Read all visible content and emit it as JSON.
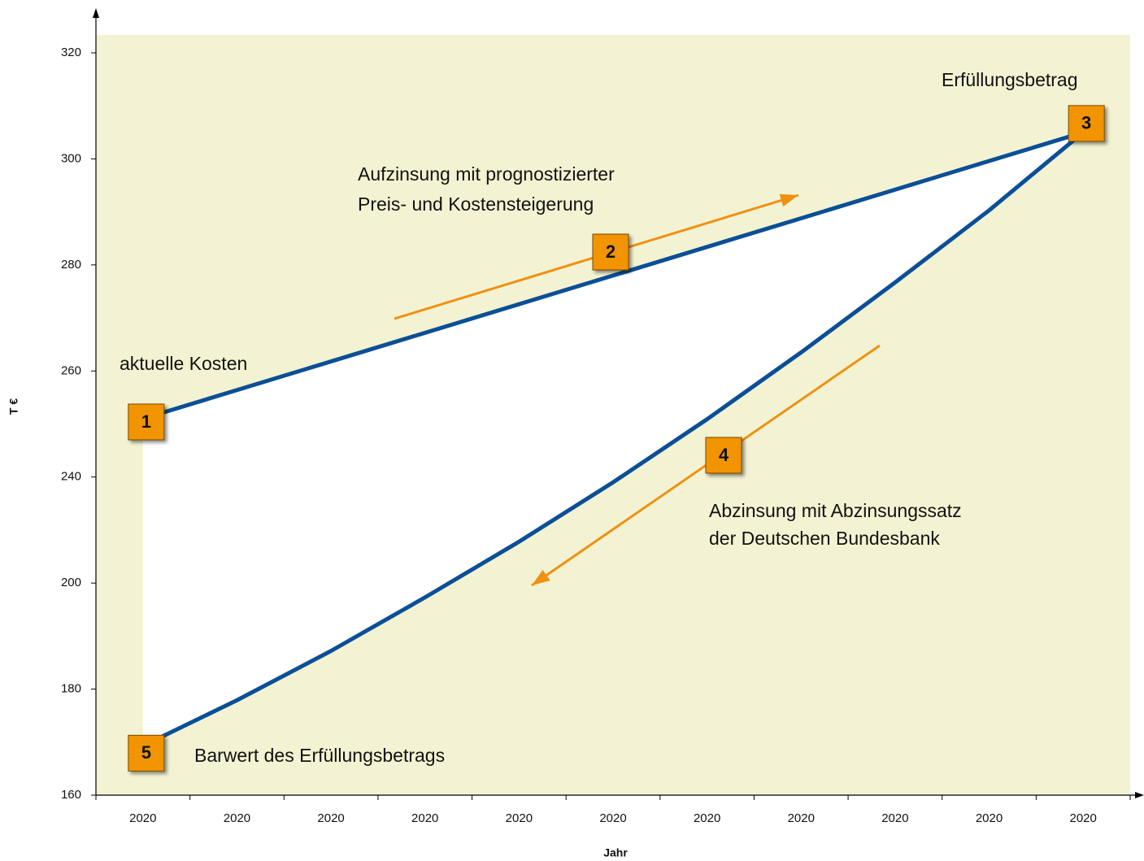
{
  "chart_data": {
    "type": "line",
    "x_label": "Jahr",
    "y_label": "T €",
    "categories": [
      "2020",
      "2020",
      "2020",
      "2020",
      "2020",
      "2020",
      "2020",
      "2020",
      "2020",
      "2020",
      "2020"
    ],
    "series": [
      {
        "color": "#0b4f96",
        "values": [
          251,
          256.4,
          261.8,
          267.2,
          272.6,
          278,
          283.4,
          288.8,
          294.2,
          299.6,
          305
        ]
      },
      {
        "color": "#0b4f96",
        "values": [
          169.3,
          177.9,
          187.2,
          197.3,
          215.6,
          238,
          250.9,
          263.5,
          276.7,
          290.3,
          305
        ]
      }
    ],
    "ylim": [
      160,
      320
    ],
    "yticks": [
      160,
      180,
      200,
      240,
      260,
      280,
      300,
      320
    ],
    "annotations": [
      {
        "badge": "1",
        "lines": [
          "aktuelle Kosten"
        ]
      },
      {
        "badge": "2",
        "lines": [
          "Aufzinsung mit prognostizierter",
          "Preis- und Kostensteigerung"
        ]
      },
      {
        "badge": "3",
        "lines": [
          "Erfüllungsbetrag"
        ]
      },
      {
        "badge": "4",
        "lines": [
          "Abzinsung mit Abzinsungssatz",
          "der Deutschen Bundesbank"
        ]
      },
      {
        "badge": "5",
        "lines": [
          "Barwert des Erfüllungsbetrags"
        ]
      }
    ],
    "plot_background": "#f3f3d3",
    "badge_color": "#f29400",
    "arrow_color": "#ef9111"
  }
}
